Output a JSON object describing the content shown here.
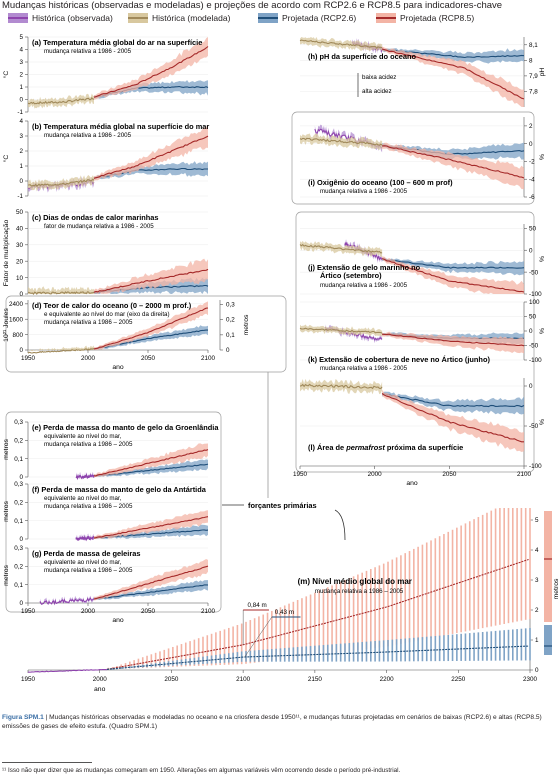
{
  "title": "Mudanças históricas (observadas e modeladas) e projeções de acordo com RCP2.6 e RCP8.5 para indicadores-chave",
  "legend": [
    {
      "label": "Histórica (observada)",
      "color": "#8e44ad",
      "band": "#b28bd0"
    },
    {
      "label": "Histórica (modelada)",
      "color": "#a0895a",
      "band": "#d8c89f"
    },
    {
      "label": "Projetada (RCP2.6)",
      "color": "#1f4e79",
      "band": "#7fa3c6"
    },
    {
      "label": "Projetada (RCP8.5)",
      "color": "#a52a2a",
      "band": "#f3b4a5"
    }
  ],
  "colors": {
    "obs": "#8e44ad",
    "obsBand": "#b28bd0",
    "mod": "#a0895a",
    "modBand": "#d8c89f",
    "rcp26": "#1f4e79",
    "rcp26Band": "#7fa3c6",
    "rcp85": "#a52a2a",
    "rcp85Band": "#f3b4a5"
  },
  "chart_data": [
    {
      "id": "a",
      "type": "line",
      "title": "(a) Temperatura média global do ar na superfície",
      "subtitle": "mudança relativa a 1986 - 2005",
      "ylabel": "°C",
      "xlim": [
        1950,
        2100
      ],
      "ylim": [
        -1,
        5
      ],
      "yticks": [
        -1,
        0,
        1,
        2,
        3,
        4,
        5
      ],
      "series": [
        {
          "name": "Histórica (modelada)",
          "x": [
            1950,
            1980,
            2005
          ],
          "y": [
            -0.3,
            -0.2,
            0.1
          ]
        },
        {
          "name": "Projetada (RCP2.6)",
          "x": [
            2005,
            2040,
            2070,
            2100
          ],
          "y": [
            0.2,
            0.9,
            1.0,
            1.0
          ]
        },
        {
          "name": "Projetada (RCP8.5)",
          "x": [
            2005,
            2040,
            2070,
            2100
          ],
          "y": [
            0.2,
            1.2,
            2.6,
            4.2
          ]
        }
      ]
    },
    {
      "id": "b",
      "type": "line",
      "title": "(b) Temperatura média global na superfície do mar",
      "subtitle": "mudança relativa a 1986 - 2005",
      "ylabel": "°C",
      "xlim": [
        1950,
        2100
      ],
      "ylim": [
        -1,
        4
      ],
      "yticks": [
        -1,
        0,
        1,
        2,
        3,
        4
      ],
      "series": [
        {
          "name": "Histórica (observada)",
          "x": [
            1950,
            1980,
            2005
          ],
          "y": [
            -0.4,
            -0.3,
            0.0
          ]
        },
        {
          "name": "Histórica (modelada)",
          "x": [
            1950,
            1980,
            2005
          ],
          "y": [
            -0.3,
            -0.2,
            0.1
          ]
        },
        {
          "name": "Projetada (RCP2.6)",
          "x": [
            2005,
            2040,
            2070,
            2100
          ],
          "y": [
            0.2,
            0.7,
            0.8,
            0.8
          ]
        },
        {
          "name": "Projetada (RCP8.5)",
          "x": [
            2005,
            2040,
            2070,
            2100
          ],
          "y": [
            0.2,
            1.0,
            2.0,
            3.0
          ]
        }
      ]
    },
    {
      "id": "c",
      "type": "line",
      "title": "(c) Dias de ondas de calor marinhas",
      "subtitle": "fator de mudança relativa a 1986 - 2005",
      "ylabel": "Fator de multiplicação",
      "xlim": [
        1950,
        2100
      ],
      "ylim": [
        0,
        50
      ],
      "yticks": [
        0,
        10,
        20,
        30,
        40,
        50
      ],
      "series": [
        {
          "name": "Histórica (modelada)",
          "x": [
            1950,
            2005
          ],
          "y": [
            0.5,
            1
          ]
        },
        {
          "name": "Projetada (RCP2.6)",
          "x": [
            2005,
            2050,
            2100
          ],
          "y": [
            1,
            4,
            5
          ]
        },
        {
          "name": "Projetada (RCP8.5)",
          "x": [
            2005,
            2050,
            2100
          ],
          "y": [
            1,
            8,
            15
          ]
        }
      ]
    },
    {
      "id": "d",
      "type": "line",
      "title": "(d) Teor de calor do oceano (0 – 2000 m prof.)",
      "subtitle": "e equivalente ao nível do mar (eixo da direita)",
      "subtitle2": "mudança relativa a 1986 – 2005",
      "ylabel": "10²¹ Joules",
      "ylabel2": "metros",
      "xlim": [
        1950,
        2100
      ],
      "ylim": [
        0,
        2600
      ],
      "yticks": [
        0,
        800,
        1600,
        2400
      ],
      "y2ticks": [
        0,
        0.1,
        0.2,
        0.3
      ],
      "xticks": [
        1950,
        2000,
        2050,
        2100
      ],
      "xlabel": "ano",
      "series": [
        {
          "name": "Histórica (modelada)",
          "x": [
            1950,
            2005
          ],
          "y": [
            -150,
            50
          ]
        },
        {
          "name": "Projetada (RCP2.6)",
          "x": [
            2005,
            2050,
            2100
          ],
          "y": [
            50,
            600,
            1050
          ]
        },
        {
          "name": "Projetada (RCP8.5)",
          "x": [
            2005,
            2050,
            2100
          ],
          "y": [
            50,
            900,
            2200
          ]
        }
      ]
    },
    {
      "id": "e",
      "type": "line",
      "title": "(e) Perda de massa do manto de gelo da Groenlândia",
      "subtitle": "equivalente ao nível do mar,",
      "subtitle2": "mudança relativa a 1986 – 2005",
      "ylabel": "metros",
      "xlim": [
        1950,
        2100
      ],
      "ylim": [
        0,
        0.3
      ],
      "yticks": [
        0,
        0.1,
        0.2,
        0.3
      ],
      "series": [
        {
          "name": "Histórica (observada)",
          "x": [
            1990,
            2005
          ],
          "y": [
            0,
            0.005
          ]
        },
        {
          "name": "Projetada (RCP2.6)",
          "x": [
            2005,
            2100
          ],
          "y": [
            0.005,
            0.07
          ]
        },
        {
          "name": "Projetada (RCP8.5)",
          "x": [
            2005,
            2100
          ],
          "y": [
            0.005,
            0.15
          ]
        }
      ]
    },
    {
      "id": "f",
      "type": "line",
      "title": "(f) Perda de massa do manto de gelo da Antártida",
      "subtitle": "equivalente ao nível do mar,",
      "subtitle2": "mudança relativa a 1986 – 2005",
      "ylabel": "metros",
      "xlim": [
        1950,
        2100
      ],
      "ylim": [
        0,
        0.3
      ],
      "yticks": [
        0,
        0.1,
        0.2,
        0.3
      ],
      "series": [
        {
          "name": "Histórica (observada)",
          "x": [
            1990,
            2005
          ],
          "y": [
            0,
            0.005
          ]
        },
        {
          "name": "Projetada (RCP2.6)",
          "x": [
            2005,
            2100
          ],
          "y": [
            0.005,
            0.05
          ]
        },
        {
          "name": "Projetada (RCP8.5)",
          "x": [
            2005,
            2100
          ],
          "y": [
            0.005,
            0.12
          ]
        }
      ]
    },
    {
      "id": "g",
      "type": "line",
      "title": "(g) Perda de massa de geleiras",
      "subtitle": "equivalente ao nível do mar,",
      "subtitle2": "mudança relativa a 1986 – 2005",
      "ylabel": "metros",
      "xlim": [
        1950,
        2100
      ],
      "ylim": [
        0,
        0.3
      ],
      "yticks": [
        0,
        0.1,
        0.2,
        0.3
      ],
      "xticks": [
        1950,
        2000,
        2050,
        2100
      ],
      "xlabel": "ano",
      "series": [
        {
          "name": "Histórica (observada)",
          "x": [
            1960,
            2005
          ],
          "y": [
            0,
            0.02
          ]
        },
        {
          "name": "Projetada (RCP2.6)",
          "x": [
            2005,
            2100
          ],
          "y": [
            0.02,
            0.1
          ]
        },
        {
          "name": "Projetada (RCP8.5)",
          "x": [
            2005,
            2100
          ],
          "y": [
            0.02,
            0.2
          ]
        }
      ]
    },
    {
      "id": "h",
      "type": "line",
      "title": "(h) pH da superfície do oceano",
      "ylabel": "pH",
      "ann1": "baixa acidez",
      "ann2": "alta acidez",
      "xlim": [
        1950,
        2100
      ],
      "ylim": [
        7.7,
        8.15
      ],
      "yticks": [
        7.8,
        7.9,
        8.0,
        8.1
      ],
      "series": [
        {
          "name": "Histórica (observada)",
          "x": [
            1985,
            2005
          ],
          "y": [
            8.11,
            8.07
          ]
        },
        {
          "name": "Histórica (modelada)",
          "x": [
            1950,
            2005
          ],
          "y": [
            8.13,
            8.08
          ]
        },
        {
          "name": "Projetada (RCP2.6)",
          "x": [
            2005,
            2060,
            2100
          ],
          "y": [
            8.07,
            8.02,
            8.03
          ]
        },
        {
          "name": "Projetada (RCP8.5)",
          "x": [
            2005,
            2060,
            2100
          ],
          "y": [
            8.07,
            7.95,
            7.75
          ]
        }
      ]
    },
    {
      "id": "i",
      "type": "line",
      "title": "(i) Oxigênio do oceano (100 – 600 m prof)",
      "subtitle": "mudança relativa a 1986 - 2005",
      "ylabel": "%",
      "xlim": [
        1950,
        2100
      ],
      "ylim": [
        -6,
        3
      ],
      "yticks": [
        -6,
        -4,
        -2,
        0,
        2
      ],
      "series": [
        {
          "name": "Histórica (observada)",
          "x": [
            1960,
            2005
          ],
          "y": [
            1.5,
            -0.3
          ]
        },
        {
          "name": "Histórica (modelada)",
          "x": [
            1950,
            2005
          ],
          "y": [
            0.6,
            -0.1
          ]
        },
        {
          "name": "Projetada (RCP2.6)",
          "x": [
            2005,
            2050,
            2100
          ],
          "y": [
            -0.2,
            -1.2,
            -0.8
          ]
        },
        {
          "name": "Projetada (RCP8.5)",
          "x": [
            2005,
            2050,
            2100
          ],
          "y": [
            -0.2,
            -1.8,
            -3.8
          ]
        }
      ]
    },
    {
      "id": "j",
      "type": "line",
      "title": "(j) Extensão de gelo marinho no Ártico (setembro)",
      "subtitle": "mudança relativa a 1986 - 2005",
      "ylabel": "%",
      "xlim": [
        1950,
        2100
      ],
      "ylim": [
        -100,
        60
      ],
      "yticks": [
        -100,
        -50,
        0,
        50
      ],
      "series": [
        {
          "name": "Histórica (observada)",
          "x": [
            1980,
            2005
          ],
          "y": [
            15,
            -20
          ]
        },
        {
          "name": "Histórica (modelada)",
          "x": [
            1950,
            2005
          ],
          "y": [
            12,
            -5
          ]
        },
        {
          "name": "Projetada (RCP2.6)",
          "x": [
            2005,
            2050,
            2100
          ],
          "y": [
            -20,
            -40,
            -40
          ]
        },
        {
          "name": "Projetada (RCP8.5)",
          "x": [
            2005,
            2050,
            2100
          ],
          "y": [
            -20,
            -70,
            -95
          ]
        }
      ]
    },
    {
      "id": "k",
      "type": "line",
      "title": "(k) Extensão de cobertura de neve no Ártico (junho)",
      "subtitle": "mudança relativa a 1986 - 2005",
      "ylabel": "%",
      "xlim": [
        1950,
        2100
      ],
      "ylim": [
        -100,
        100
      ],
      "yticks": [
        -100,
        -50,
        0,
        50,
        100
      ],
      "series": [
        {
          "name": "Histórica (observada)",
          "x": [
            1967,
            2005
          ],
          "y": [
            10,
            -30
          ]
        },
        {
          "name": "Histórica (modelada)",
          "x": [
            1950,
            2005
          ],
          "y": [
            8,
            -5
          ]
        },
        {
          "name": "Projetada (RCP2.6)",
          "x": [
            2005,
            2050,
            2100
          ],
          "y": [
            -10,
            -25,
            -25
          ]
        },
        {
          "name": "Projetada (RCP8.5)",
          "x": [
            2005,
            2050,
            2100
          ],
          "y": [
            -10,
            -35,
            -50
          ]
        }
      ]
    },
    {
      "id": "l",
      "type": "line",
      "title": "(l) Área de permafrost próxima da superfície",
      "titlePre": "(l) Área de ",
      "titleItalic": "permafrost",
      "titlePost": " próxima da superfície",
      "ylabel": "%",
      "xlim": [
        1950,
        2100
      ],
      "ylim": [
        -100,
        10
      ],
      "yticks": [
        -100,
        -50,
        0
      ],
      "xticks": [
        1950,
        2000,
        2050,
        2100
      ],
      "xlabel": "ano",
      "series": [
        {
          "name": "Histórica (modelada)",
          "x": [
            1950,
            2005
          ],
          "y": [
            1,
            -2
          ]
        },
        {
          "name": "Projetada (RCP2.6)",
          "x": [
            2005,
            2050,
            2100
          ],
          "y": [
            -10,
            -25,
            -25
          ]
        },
        {
          "name": "Projetada (RCP8.5)",
          "x": [
            2005,
            2050,
            2100
          ],
          "y": [
            -10,
            -45,
            -70
          ]
        }
      ]
    },
    {
      "id": "m",
      "type": "line",
      "title": "(m) Nível médio global do mar",
      "subtitle": "mudança relativa a 1986 – 2005",
      "ylabel": "metros",
      "xlim": [
        1950,
        2300
      ],
      "ylim": [
        0,
        5.4
      ],
      "yticks": [
        0,
        1,
        2,
        3,
        4,
        5
      ],
      "xticks": [
        1950,
        2000,
        2050,
        2100,
        2150,
        2200,
        2250,
        2300
      ],
      "xlabel": "ano",
      "callouts": {
        "rcp85": "0,84 m",
        "rcp26": "0,43 m"
      },
      "series": [
        {
          "name": "Histórica (observada)",
          "x": [
            1950,
            2005
          ],
          "y": [
            -0.07,
            0.02
          ]
        },
        {
          "name": "Projetada (RCP2.6)",
          "x": [
            2005,
            2100,
            2200,
            2300
          ],
          "y": [
            0.02,
            0.43,
            0.6,
            0.8
          ]
        },
        {
          "name": "Projetada (RCP8.5)",
          "x": [
            2005,
            2100,
            2200,
            2300
          ],
          "y": [
            0.02,
            0.84,
            2.1,
            3.7
          ]
        }
      ],
      "side_bars": {
        "rcp85": [
          1.6,
          5.3
        ],
        "rcp85mid": 3.7,
        "rcp26": [
          0.5,
          1.5
        ],
        "rcp26mid": 0.8
      }
    }
  ],
  "forcing_label": "forçantes primárias",
  "caption": {
    "label": "Figura SPM.1",
    "text": " | Mudanças históricas observadas e modeladas no oceano e na criosfera desde 1950¹¹, e mudanças futuras projetadas em cenários de baixas (RCP2.6) e altas (RCP8.5) emissões de gases de efeito estufa. (Quadro SPM.1)"
  },
  "footnote": "¹¹ Isso não quer dizer que as mudanças começaram em 1950. Alterações em algumas variáveis vêm ocorrendo desde o período pré-industrial."
}
